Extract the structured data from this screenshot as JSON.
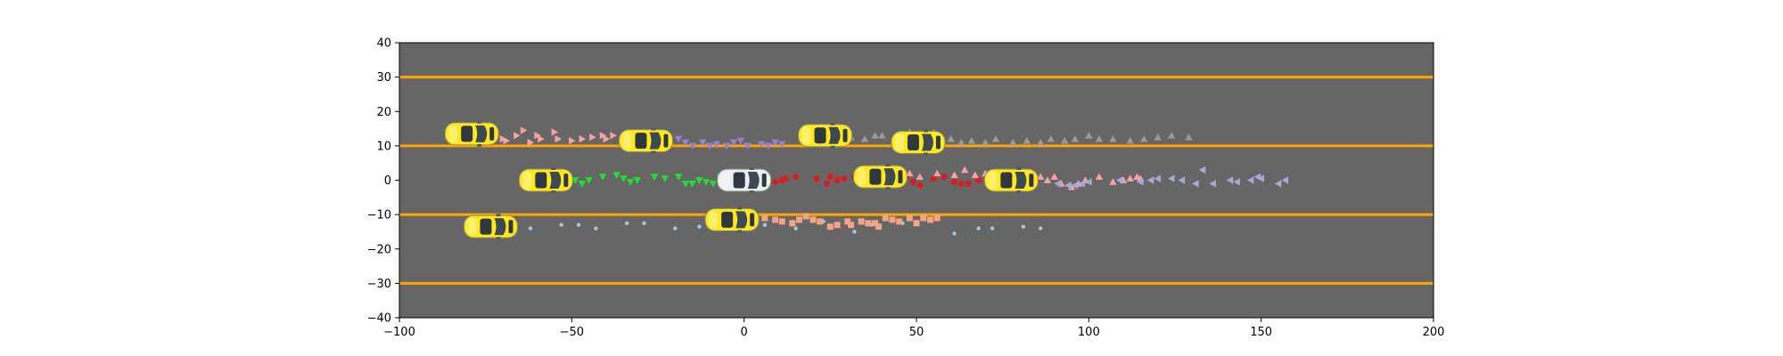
{
  "chart_data": {
    "type": "scatter",
    "title": "",
    "xlabel": "",
    "ylabel": "",
    "xlim": [
      -100,
      200
    ],
    "ylim": [
      -40,
      40
    ],
    "x_ticks": [
      -100,
      -50,
      0,
      50,
      100,
      150,
      200
    ],
    "y_ticks": [
      -40,
      -30,
      -20,
      -10,
      0,
      10,
      20,
      30,
      40
    ],
    "x_tick_labels": [
      "−100",
      "−50",
      "0",
      "50",
      "100",
      "150",
      "200"
    ],
    "y_tick_labels": [
      "−40",
      "−30",
      "−20",
      "−10",
      "0",
      "10",
      "20",
      "30",
      "40"
    ],
    "grid": false,
    "background_color": "#666666",
    "lane_color": "#ffa500",
    "lane_lines_y": [
      30,
      10,
      -10,
      -30
    ],
    "vehicles": [
      {
        "kind": "other",
        "color": "#ffe81c",
        "x": -79,
        "y": 13.5
      },
      {
        "kind": "other",
        "color": "#ffe81c",
        "x": -28.5,
        "y": 11.5
      },
      {
        "kind": "other",
        "color": "#ffe81c",
        "x": 23.5,
        "y": 13
      },
      {
        "kind": "other",
        "color": "#ffe81c",
        "x": 50.5,
        "y": 11
      },
      {
        "kind": "other",
        "color": "#ffe81c",
        "x": -57.5,
        "y": 0
      },
      {
        "kind": "ego",
        "color": "#e8eef2",
        "x": 0,
        "y": 0
      },
      {
        "kind": "other",
        "color": "#ffe81c",
        "x": 39.5,
        "y": 1
      },
      {
        "kind": "other",
        "color": "#ffe81c",
        "x": 77.5,
        "y": 0
      },
      {
        "kind": "other",
        "color": "#ffe81c",
        "x": -73.5,
        "y": -13.5
      },
      {
        "kind": "other",
        "color": "#ffe81c",
        "x": -3.5,
        "y": -11.5
      }
    ],
    "series": [
      {
        "marker": "triangle-right",
        "color": "#f4a2a2",
        "points": [
          [
            -70,
            12
          ],
          [
            -69,
            11.5
          ],
          [
            -66,
            13
          ],
          [
            -64,
            14.5
          ],
          [
            -62,
            11
          ],
          [
            -60,
            13
          ],
          [
            -59,
            12
          ],
          [
            -55,
            14
          ],
          [
            -54,
            12
          ],
          [
            -50,
            11.5
          ],
          [
            -47,
            12
          ],
          [
            -44,
            12.5
          ],
          [
            -41,
            13
          ],
          [
            -40,
            12
          ],
          [
            -38,
            13
          ]
        ]
      },
      {
        "marker": "triangle-down",
        "color": "#9b7fd4",
        "points": [
          [
            -19,
            12
          ],
          [
            -17,
            11
          ],
          [
            -15,
            10
          ],
          [
            -12,
            11
          ],
          [
            -10,
            10
          ],
          [
            -8,
            10.5
          ],
          [
            -5,
            10
          ],
          [
            -3,
            11
          ],
          [
            -1,
            11.5
          ],
          [
            1,
            10
          ],
          [
            5,
            10.5
          ],
          [
            7,
            10
          ],
          [
            9,
            11
          ],
          [
            11,
            10.5
          ]
        ]
      },
      {
        "marker": "triangle-up",
        "color": "#9a9a9a",
        "points": [
          [
            28,
            13
          ],
          [
            31,
            12.5
          ],
          [
            35,
            12
          ],
          [
            38,
            13
          ],
          [
            40,
            13
          ],
          [
            44,
            12
          ],
          [
            48,
            14
          ],
          [
            52,
            13.5
          ],
          [
            55,
            14
          ],
          [
            60,
            12
          ],
          [
            63,
            11
          ],
          [
            66,
            11.5
          ],
          [
            70,
            11
          ],
          [
            73,
            12
          ],
          [
            78,
            11
          ],
          [
            82,
            11.5
          ],
          [
            86,
            11
          ],
          [
            89,
            12
          ],
          [
            93,
            11.5
          ],
          [
            96,
            12
          ],
          [
            100,
            13
          ],
          [
            103,
            12
          ],
          [
            107,
            12
          ],
          [
            112,
            11.5
          ],
          [
            116,
            12
          ],
          [
            120,
            12.5
          ],
          [
            124,
            13
          ],
          [
            129,
            12.5
          ]
        ]
      },
      {
        "marker": "triangle-down",
        "color": "#22dd33",
        "points": [
          [
            -51,
            1
          ],
          [
            -49,
            0
          ],
          [
            -47,
            -1
          ],
          [
            -45,
            0
          ],
          [
            -41,
            1
          ],
          [
            -37,
            1.5
          ],
          [
            -35,
            0.5
          ],
          [
            -33,
            -0.5
          ],
          [
            -31,
            0
          ],
          [
            -26,
            1
          ],
          [
            -23,
            0.5
          ],
          [
            -19,
            1
          ],
          [
            -17,
            -1
          ],
          [
            -15,
            -1
          ],
          [
            -13,
            0
          ],
          [
            -11,
            -0.5
          ],
          [
            -9,
            -1
          ],
          [
            -7,
            1
          ]
        ]
      },
      {
        "marker": "circle",
        "color": "#d42020",
        "points": [
          [
            9,
            -0.5
          ],
          [
            11,
            0
          ],
          [
            12,
            0.5
          ],
          [
            15,
            1
          ],
          [
            21,
            0.5
          ],
          [
            24,
            -1
          ],
          [
            25,
            1
          ],
          [
            27,
            0
          ],
          [
            29,
            0.5
          ],
          [
            32,
            1
          ],
          [
            47,
            1
          ],
          [
            49,
            -0.5
          ],
          [
            51,
            -1.5
          ],
          [
            55,
            0.5
          ],
          [
            58,
            1
          ],
          [
            61,
            -0.5
          ],
          [
            63,
            -1
          ],
          [
            65,
            -1
          ],
          [
            68,
            0
          ],
          [
            71,
            -0.5
          ],
          [
            72,
            0
          ]
        ]
      },
      {
        "marker": "triangle-up",
        "color": "#f4a2a2",
        "points": [
          [
            48,
            2
          ],
          [
            51,
            1
          ],
          [
            56,
            2
          ],
          [
            61,
            1.5
          ],
          [
            64,
            3
          ],
          [
            67,
            1.5
          ],
          [
            70,
            2
          ],
          [
            84,
            0
          ],
          [
            86,
            1
          ],
          [
            88,
            0
          ],
          [
            90,
            1
          ],
          [
            92,
            -1
          ],
          [
            95,
            -2
          ],
          [
            97,
            -1
          ],
          [
            99,
            0
          ],
          [
            103,
            1
          ],
          [
            107,
            -0.5
          ],
          [
            110,
            0
          ],
          [
            112,
            0.5
          ],
          [
            114,
            1
          ],
          [
            115,
            0.5
          ]
        ]
      },
      {
        "marker": "triangle-left",
        "color": "#a5a8d8",
        "points": [
          [
            91,
            -1
          ],
          [
            94,
            -1.5
          ],
          [
            96,
            -1.5
          ],
          [
            98,
            -1
          ],
          [
            100,
            -0.5
          ],
          [
            109,
            0
          ],
          [
            115,
            -0.5
          ],
          [
            118,
            0
          ],
          [
            120,
            0.5
          ],
          [
            124,
            0.5
          ],
          [
            127,
            0
          ],
          [
            131,
            -1
          ],
          [
            133,
            3
          ],
          [
            136,
            -1
          ],
          [
            141,
            0
          ],
          [
            143,
            -0.5
          ],
          [
            147,
            0
          ],
          [
            149,
            1
          ],
          [
            150,
            0.5
          ],
          [
            155,
            -1
          ],
          [
            157,
            0
          ]
        ]
      },
      {
        "marker": "circle-small",
        "color": "#9ec8e8",
        "points": [
          [
            -62,
            -14
          ],
          [
            -53,
            -13
          ],
          [
            -48,
            -13
          ],
          [
            -43,
            -14
          ],
          [
            -34,
            -12.5
          ],
          [
            -29,
            -12.5
          ],
          [
            -20,
            -14
          ],
          [
            -13,
            -13.5
          ],
          [
            -8,
            -13
          ],
          [
            -4,
            -12
          ],
          [
            -1,
            -11
          ],
          [
            6,
            -13
          ],
          [
            15,
            -14
          ],
          [
            23,
            -12
          ],
          [
            32,
            -15
          ],
          [
            37,
            -13
          ],
          [
            46,
            -12.5
          ],
          [
            61,
            -15.5
          ],
          [
            68,
            -14
          ],
          [
            72,
            -14
          ],
          [
            81,
            -13.5
          ],
          [
            86,
            -14
          ]
        ]
      },
      {
        "marker": "square",
        "color": "#f4a482",
        "points": [
          [
            2,
            -12
          ],
          [
            6,
            -11
          ],
          [
            9,
            -11.5
          ],
          [
            11,
            -12
          ],
          [
            14,
            -12.5
          ],
          [
            16,
            -11.5
          ],
          [
            18,
            -10.5
          ],
          [
            20,
            -11.5
          ],
          [
            22,
            -12
          ],
          [
            25,
            -13.5
          ],
          [
            27,
            -13
          ],
          [
            30,
            -12
          ],
          [
            31,
            -13
          ],
          [
            34,
            -12
          ],
          [
            36,
            -12.5
          ],
          [
            38,
            -12.5
          ],
          [
            39,
            -13.5
          ],
          [
            41,
            -11
          ],
          [
            43,
            -11.5
          ],
          [
            45,
            -12
          ],
          [
            48,
            -11
          ],
          [
            50,
            -12.5
          ],
          [
            52,
            -11
          ],
          [
            54,
            -11.5
          ],
          [
            56,
            -11
          ]
        ]
      }
    ]
  }
}
